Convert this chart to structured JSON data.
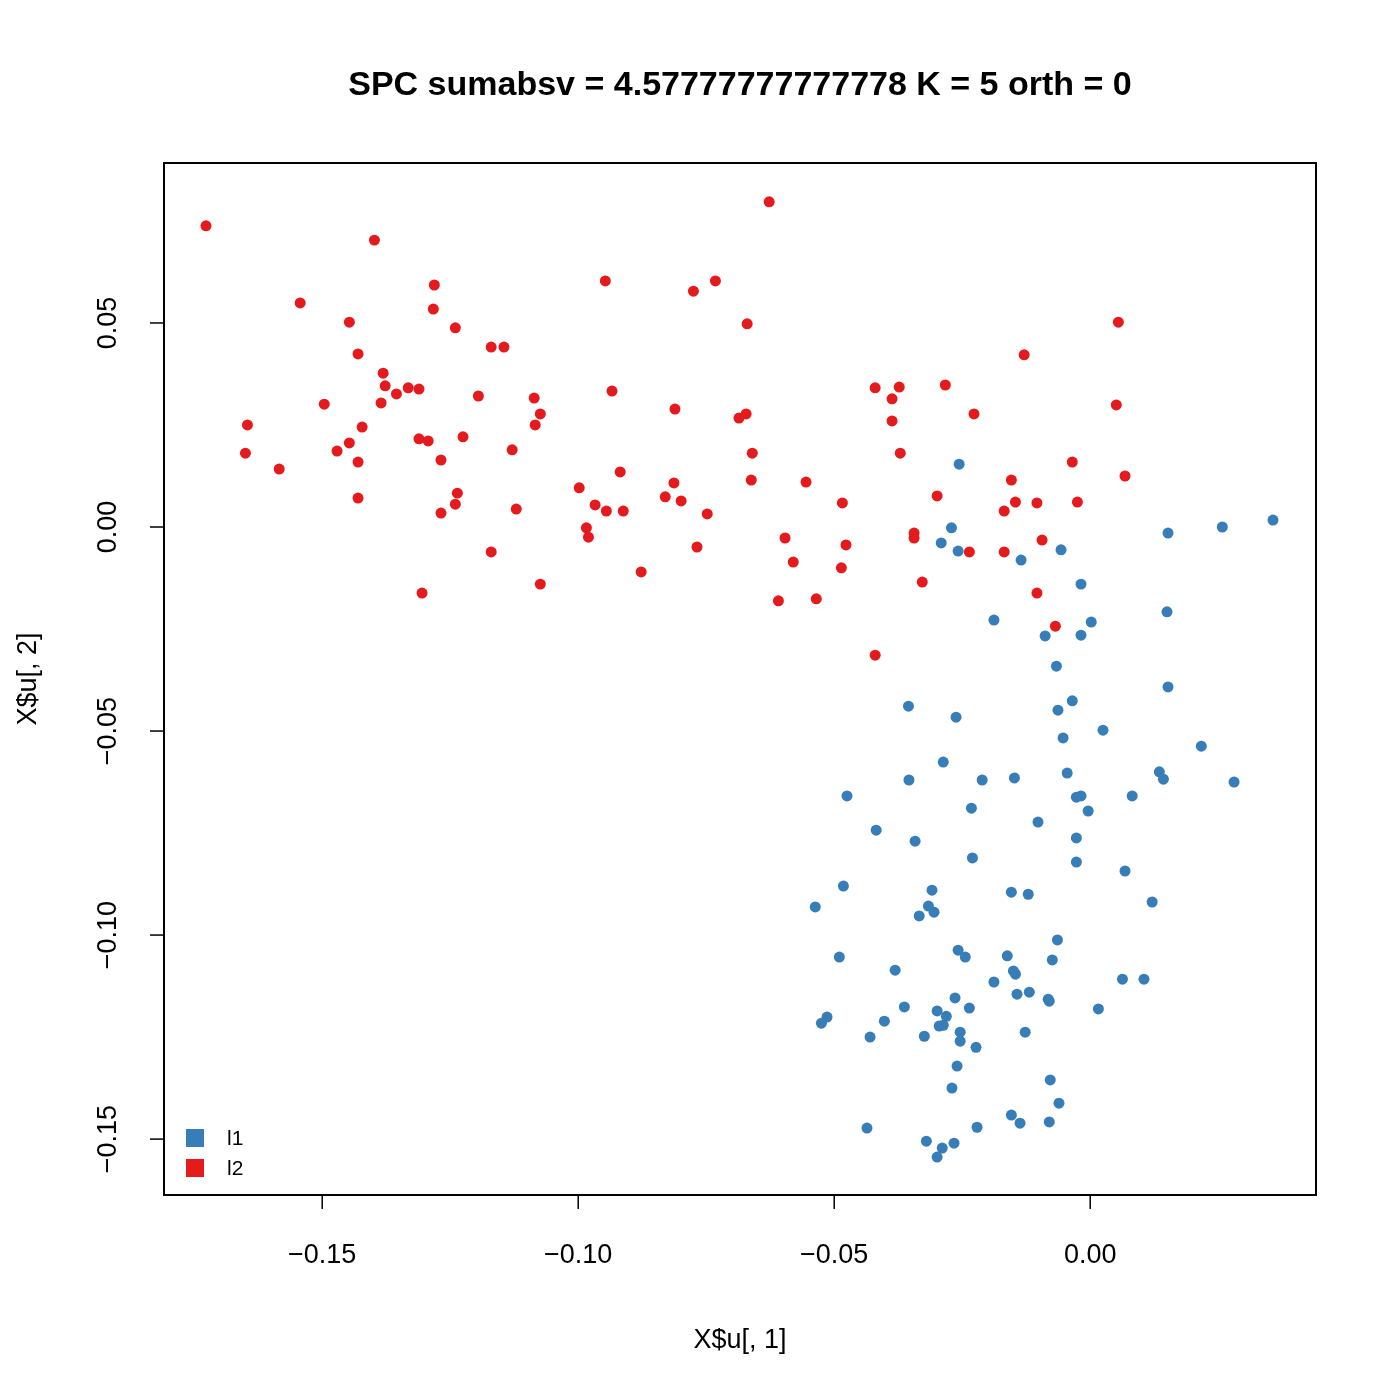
{
  "chart_data": {
    "type": "scatter",
    "title": "SPC sumabsv = 4.57777777777778 K = 5 orth =  0",
    "xlabel": "X$u[, 1]",
    "ylabel": "X$u[, 2]",
    "xlim": [
      -0.1809,
      0.0441
    ],
    "ylim": [
      -0.1637,
      0.0892
    ],
    "xticks": [
      {
        "value": -0.15,
        "label": "−0.15"
      },
      {
        "value": -0.1,
        "label": "−0.10"
      },
      {
        "value": -0.05,
        "label": "−0.05"
      },
      {
        "value": 0,
        "label": "0.00"
      }
    ],
    "yticks": [
      {
        "value": -0.15,
        "label": "−0.15"
      },
      {
        "value": -0.1,
        "label": "−0.10"
      },
      {
        "value": -0.05,
        "label": "−0.05"
      },
      {
        "value": 0,
        "label": "0.00"
      },
      {
        "value": 0.05,
        "label": "0.05"
      }
    ],
    "grid": false,
    "legend": "bottom left",
    "marker": "circle",
    "series": [
      {
        "name": "l1",
        "color": "#377eb8",
        "x": [
          -0.0256,
          0.0357,
          0.0258,
          0.0152,
          -0.0271,
          -0.0291,
          -0.0258,
          -0.0057,
          -0.0135,
          -0.0018,
          0.015,
          -0.0188,
          0.0002,
          -0.0018,
          -0.0088,
          -0.0066,
          0.0152,
          -0.0035,
          -0.0063,
          -0.0355,
          -0.0262,
          0.0025,
          -0.0053,
          0.0217,
          -0.0287,
          -0.0045,
          0.0135,
          0.0143,
          -0.0354,
          -0.0211,
          -0.0148,
          0.0281,
          -0.0475,
          -0.0027,
          -0.0018,
          0.0082,
          -0.0232,
          -0.0004,
          -0.0102,
          -0.0418,
          -0.0027,
          -0.0342,
          -0.023,
          -0.0027,
          0.0068,
          -0.0482,
          -0.0309,
          -0.0154,
          -0.0121,
          0.0121,
          -0.0537,
          -0.0316,
          -0.0305,
          -0.0334,
          -0.0064,
          -0.0258,
          -0.0244,
          -0.0162,
          -0.049,
          -0.0074,
          -0.0381,
          -0.015,
          -0.0146,
          0.0063,
          0.0105,
          -0.0188,
          -0.0119,
          -0.0143,
          -0.0082,
          -0.008,
          -0.0264,
          -0.0363,
          -0.0236,
          0.0016,
          -0.0299,
          -0.0281,
          -0.0514,
          -0.0402,
          -0.0525,
          -0.0287,
          -0.0295,
          -0.0127,
          -0.0254,
          -0.0324,
          -0.043,
          -0.0254,
          -0.0223,
          -0.026,
          -0.0078,
          -0.027,
          -0.0061,
          -0.0154,
          -0.0137,
          -0.008,
          -0.0436,
          -0.0221,
          -0.032,
          -0.0266,
          -0.0289,
          -0.0299
        ],
        "values": [
          0.0154,
          0.0017,
          0,
          -0.0015,
          -0.0002,
          -0.0039,
          -0.0059,
          -0.0056,
          -0.0081,
          -0.014,
          -0.0208,
          -0.0228,
          -0.0233,
          -0.0265,
          -0.0267,
          -0.0341,
          -0.0392,
          -0.0426,
          -0.0449,
          -0.0439,
          -0.0466,
          -0.0498,
          -0.0517,
          -0.0537,
          -0.0576,
          -0.0603,
          -0.06,
          -0.0618,
          -0.062,
          -0.062,
          -0.0615,
          -0.0625,
          -0.0659,
          -0.0662,
          -0.0659,
          -0.0659,
          -0.0689,
          -0.0696,
          -0.0723,
          -0.0743,
          -0.0762,
          -0.077,
          -0.0811,
          -0.0821,
          -0.0843,
          -0.088,
          -0.089,
          -0.0895,
          -0.09,
          -0.0919,
          -0.0931,
          -0.0929,
          -0.0944,
          -0.0953,
          -0.1012,
          -0.1037,
          -0.1054,
          -0.1051,
          -0.1054,
          -0.1061,
          -0.1086,
          -0.1088,
          -0.1096,
          -0.1108,
          -0.1108,
          -0.1115,
          -0.114,
          -0.1145,
          -0.1157,
          -0.1162,
          -0.1154,
          -0.1176,
          -0.1179,
          -0.1181,
          -0.1186,
          -0.1199,
          -0.1201,
          -0.1211,
          -0.1216,
          -0.1221,
          -0.1223,
          -0.1238,
          -0.1238,
          -0.1248,
          -0.125,
          -0.126,
          -0.1275,
          -0.1321,
          -0.1355,
          -0.1375,
          -0.1412,
          -0.1441,
          -0.1461,
          -0.1458,
          -0.1473,
          -0.1471,
          -0.1505,
          -0.151,
          -0.1522,
          -0.1544
        ]
      },
      {
        "name": "l2",
        "color": "#e41a1c",
        "x": [
          -0.1727,
          -0.1398,
          -0.0627,
          -0.1543,
          -0.1281,
          -0.1283,
          -0.0947,
          -0.0775,
          -0.0732,
          -0.1447,
          -0.124,
          -0.067,
          -0.143,
          -0.117,
          -0.1145,
          -0.0129,
          0.0055,
          -0.1381,
          -0.1377,
          -0.1355,
          -0.1332,
          -0.1311,
          -0.1385,
          -0.1496,
          -0.1195,
          -0.1086,
          -0.1074,
          -0.0934,
          -0.0811,
          -0.0686,
          -0.0672,
          -0.042,
          -0.0373,
          -0.0387,
          -0.0387,
          -0.0283,
          -0.0227,
          0.0051,
          -0.1646,
          -0.1422,
          -0.1084,
          -0.1311,
          -0.1293,
          -0.1225,
          -0.1447,
          -0.1471,
          -0.165,
          -0.1129,
          -0.066,
          -0.0371,
          -0.143,
          -0.1268,
          -0.1584,
          -0.0918,
          -0.0813,
          -0.0662,
          -0.0555,
          -0.0154,
          -0.0035,
          0.0068,
          -0.0998,
          -0.1236,
          -0.143,
          -0.083,
          -0.0799,
          -0.0967,
          -0.124,
          -0.0484,
          -0.0299,
          -0.0146,
          -0.0104,
          -0.0025,
          -0.1121,
          -0.0945,
          -0.0912,
          -0.0748,
          -0.1268,
          -0.0168,
          -0.0984,
          -0.098,
          -0.0344,
          -0.0344,
          -0.0596,
          -0.0477,
          -0.0094,
          -0.0768,
          -0.117,
          -0.0236,
          -0.0168,
          -0.058,
          -0.0877,
          -0.0486,
          -0.1074,
          -0.0328,
          -0.1305,
          -0.0609,
          -0.0535,
          -0.0104,
          -0.0068,
          -0.042
        ],
        "values": [
          0.0738,
          0.0703,
          0.0797,
          0.0549,
          0.0593,
          0.0534,
          0.0603,
          0.0578,
          0.0603,
          0.0502,
          0.0488,
          0.0498,
          0.0424,
          0.0441,
          0.0441,
          0.0422,
          0.0502,
          0.0377,
          0.0346,
          0.0326,
          0.0341,
          0.0338,
          0.0304,
          0.0301,
          0.0321,
          0.0316,
          0.0277,
          0.0333,
          0.0289,
          0.0267,
          0.0277,
          0.0341,
          0.0343,
          0.0314,
          0.026,
          0.0348,
          0.0277,
          0.0299,
          0.025,
          0.0245,
          0.025,
          0.0216,
          0.0211,
          0.0221,
          0.0206,
          0.0186,
          0.0181,
          0.0189,
          0.0181,
          0.0181,
          0.0159,
          0.0164,
          0.0142,
          0.0135,
          0.0108,
          0.0115,
          0.011,
          0.0115,
          0.0159,
          0.0125,
          0.0096,
          0.0083,
          0.0071,
          0.0074,
          0.0064,
          0.0054,
          0.0056,
          0.0059,
          0.0076,
          0.0061,
          0.0059,
          0.0061,
          0.0044,
          0.0039,
          0.0039,
          0.0032,
          0.0034,
          0.0039,
          -0.0002,
          -0.0025,
          -0.0015,
          -0.0027,
          -0.0027,
          -0.0044,
          -0.0032,
          -0.0049,
          -0.0061,
          -0.0061,
          -0.0061,
          -0.0086,
          -0.011,
          -0.01,
          -0.014,
          -0.0135,
          -0.0162,
          -0.0181,
          -0.0176,
          -0.0162,
          -0.0243,
          -0.0314
        ]
      }
    ]
  }
}
